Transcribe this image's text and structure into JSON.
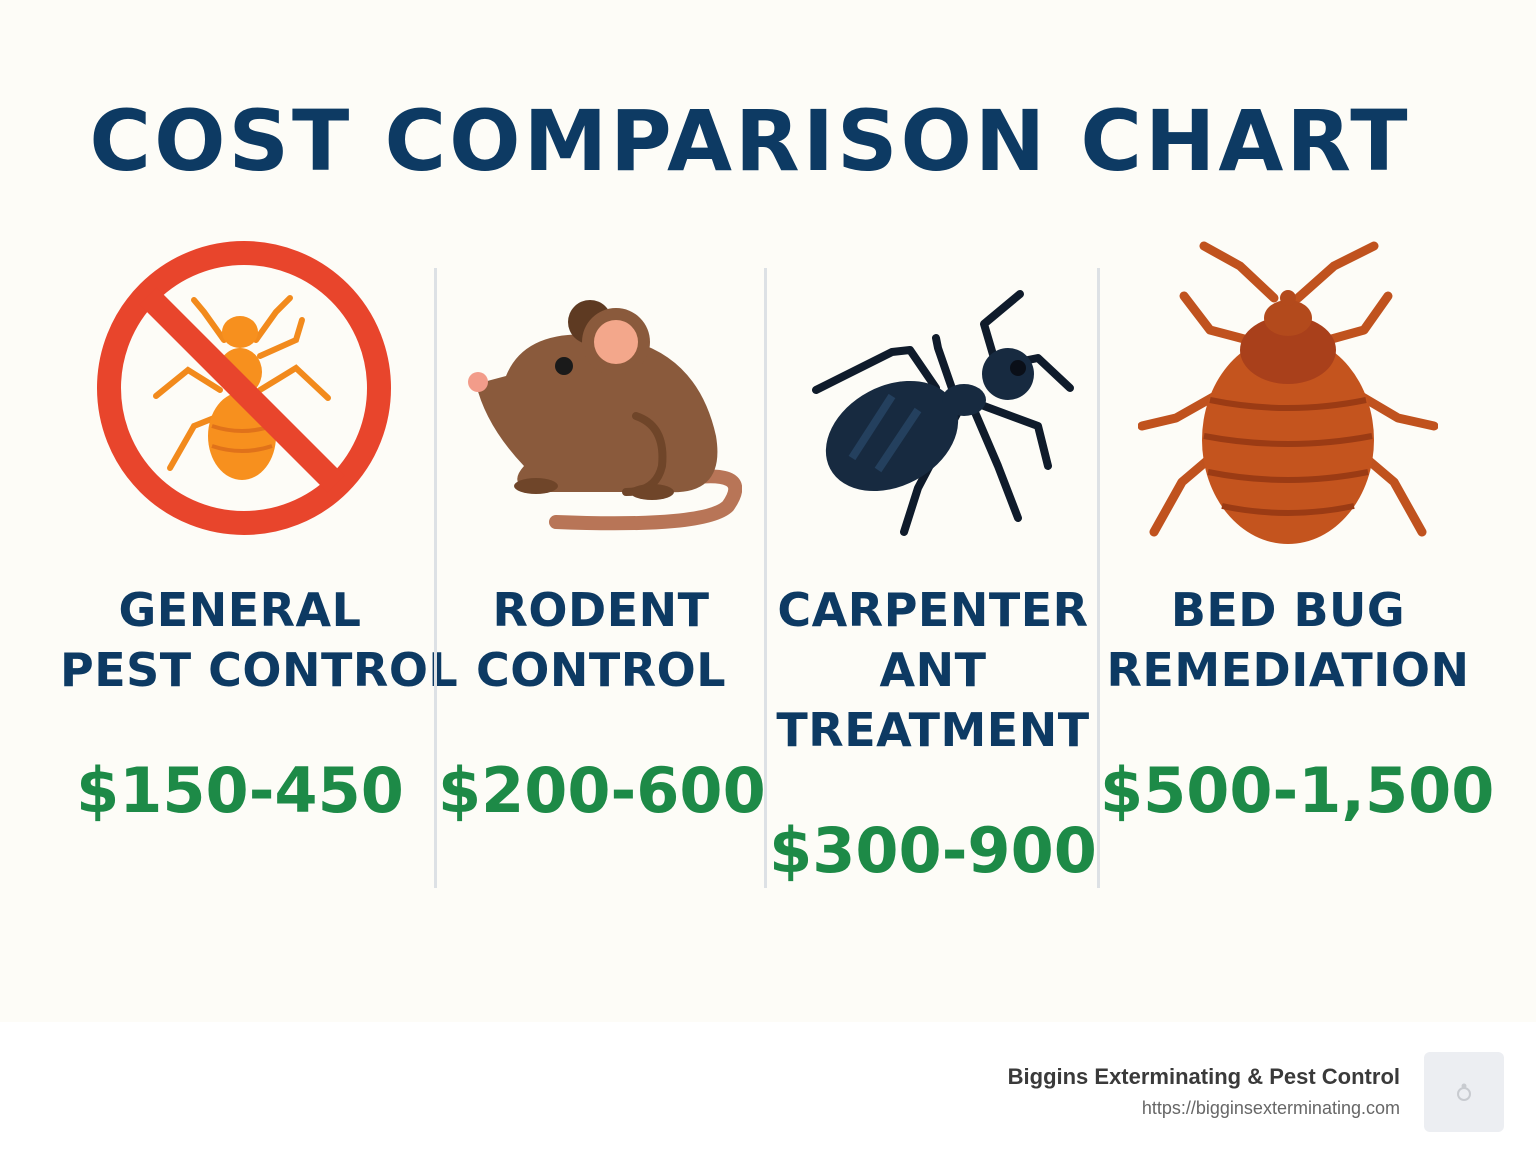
{
  "title": "COST COMPARISON CHART",
  "services": [
    {
      "label_lines": [
        "GENERAL",
        "PEST CONTROL"
      ],
      "price": "$150-450",
      "icon": "no-bugs-icon"
    },
    {
      "label_lines": [
        "RODENT",
        "CONTROL"
      ],
      "price": "$200-600",
      "icon": "mouse-icon"
    },
    {
      "label_lines": [
        "CARPENTER",
        "ANT",
        "TREATMENT"
      ],
      "price": "$300-900",
      "icon": "ant-icon"
    },
    {
      "label_lines": [
        "BED BUG",
        "REMEDIATION"
      ],
      "price": "$500-1,500",
      "icon": "bed-bug-icon"
    }
  ],
  "footer": {
    "brand_name": "Biggins Exterminating & Pest Control",
    "brand_url": "https://bigginsexterminating.com"
  },
  "colors": {
    "title": "#0d3a63",
    "price": "#1d8a47",
    "prohibition": "#e8452c",
    "background": "#fdfcf7"
  }
}
